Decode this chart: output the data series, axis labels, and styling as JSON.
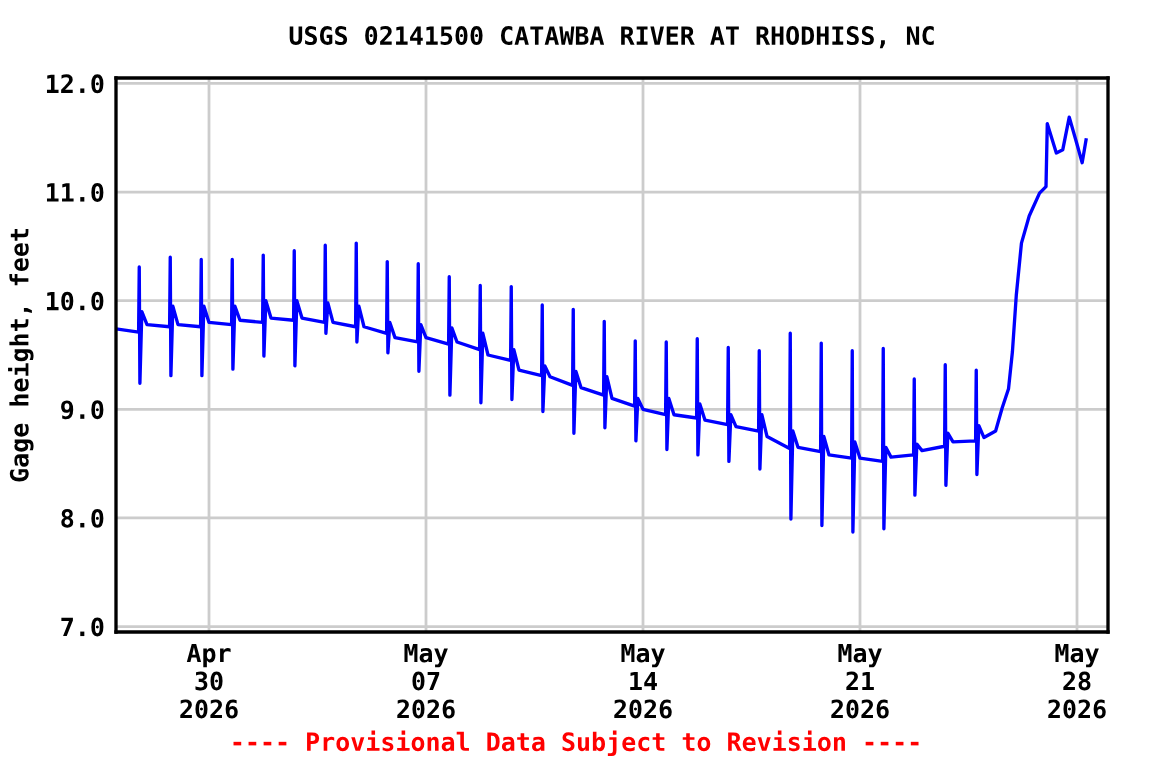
{
  "chart_data": {
    "type": "line",
    "title": "USGS 02141500 CATAWBA RIVER AT RHODHISS, NC",
    "ylabel": "Gage height, feet",
    "annotations": [
      "---- Provisional Data Subject to Revision ----"
    ],
    "xlim": [
      "2026-04-27T00:00",
      "2026-05-29T00:00"
    ],
    "xticks": [
      {
        "value": "2026-04-30",
        "label": "Apr\n30\n2026"
      },
      {
        "value": "2026-05-07",
        "label": "May\n07\n2026"
      },
      {
        "value": "2026-05-14",
        "label": "May\n14\n2026"
      },
      {
        "value": "2026-05-21",
        "label": "May\n21\n2026"
      },
      {
        "value": "2026-05-28",
        "label": "May\n28\n2026"
      }
    ],
    "ylim": [
      6.95,
      12.05
    ],
    "yticks": [
      {
        "value": 7,
        "label": "7.0"
      },
      {
        "value": 8,
        "label": "8.0"
      },
      {
        "value": 9,
        "label": "9.0"
      },
      {
        "value": 10,
        "label": "10.0"
      },
      {
        "value": 11,
        "label": "11.0"
      },
      {
        "value": 12,
        "label": "12.0"
      }
    ],
    "grid": true,
    "legend": false,
    "marker": "none",
    "line_style": "solid",
    "series": [
      {
        "color": "#0000ff",
        "x": [
          "2026-04-27T00:00",
          "2026-04-27T17:30",
          "2026-04-27T18:00",
          "2026-04-27T18:30",
          "2026-04-27T20:00",
          "2026-04-28T00:00",
          "2026-04-28T17:30",
          "2026-04-28T18:00",
          "2026-04-28T18:30",
          "2026-04-28T20:00",
          "2026-04-29T00:00",
          "2026-04-29T17:30",
          "2026-04-29T18:00",
          "2026-04-29T18:30",
          "2026-04-29T20:00",
          "2026-04-30T00:00",
          "2026-04-30T17:30",
          "2026-04-30T18:00",
          "2026-04-30T18:30",
          "2026-04-30T20:00",
          "2026-05-01T00:00",
          "2026-05-01T17:30",
          "2026-05-01T18:00",
          "2026-05-01T18:30",
          "2026-05-01T20:00",
          "2026-05-02T00:00",
          "2026-05-02T17:30",
          "2026-05-02T18:00",
          "2026-05-02T18:30",
          "2026-05-02T20:00",
          "2026-05-03T00:00",
          "2026-05-03T17:30",
          "2026-05-03T18:00",
          "2026-05-03T18:30",
          "2026-05-03T20:00",
          "2026-05-04T00:00",
          "2026-05-04T17:30",
          "2026-05-04T18:00",
          "2026-05-04T18:30",
          "2026-05-04T20:00",
          "2026-05-05T00:00",
          "2026-05-05T17:30",
          "2026-05-05T18:00",
          "2026-05-05T18:30",
          "2026-05-05T20:00",
          "2026-05-06T00:00",
          "2026-05-06T17:30",
          "2026-05-06T18:00",
          "2026-05-06T18:30",
          "2026-05-06T20:00",
          "2026-05-07T00:00",
          "2026-05-07T17:30",
          "2026-05-07T18:00",
          "2026-05-07T18:30",
          "2026-05-07T20:00",
          "2026-05-08T00:00",
          "2026-05-08T17:30",
          "2026-05-08T18:00",
          "2026-05-08T18:30",
          "2026-05-08T20:00",
          "2026-05-09T00:00",
          "2026-05-09T17:30",
          "2026-05-09T18:00",
          "2026-05-09T18:30",
          "2026-05-09T20:00",
          "2026-05-10T00:00",
          "2026-05-10T17:30",
          "2026-05-10T18:00",
          "2026-05-10T18:30",
          "2026-05-10T20:00",
          "2026-05-11T00:00",
          "2026-05-11T17:30",
          "2026-05-11T18:00",
          "2026-05-11T18:30",
          "2026-05-11T20:00",
          "2026-05-12T00:00",
          "2026-05-12T17:30",
          "2026-05-12T18:00",
          "2026-05-12T18:30",
          "2026-05-12T20:00",
          "2026-05-13T00:00",
          "2026-05-13T17:30",
          "2026-05-13T18:00",
          "2026-05-13T18:30",
          "2026-05-13T20:00",
          "2026-05-14T00:00",
          "2026-05-14T17:30",
          "2026-05-14T18:00",
          "2026-05-14T18:30",
          "2026-05-14T20:00",
          "2026-05-15T00:00",
          "2026-05-15T17:30",
          "2026-05-15T18:00",
          "2026-05-15T18:30",
          "2026-05-15T20:00",
          "2026-05-16T00:00",
          "2026-05-16T17:30",
          "2026-05-16T18:00",
          "2026-05-16T18:30",
          "2026-05-16T20:00",
          "2026-05-17T00:00",
          "2026-05-17T17:30",
          "2026-05-17T18:00",
          "2026-05-17T18:30",
          "2026-05-17T20:00",
          "2026-05-18T00:00",
          "2026-05-18T17:30",
          "2026-05-18T18:00",
          "2026-05-18T18:30",
          "2026-05-18T20:00",
          "2026-05-19T00:00",
          "2026-05-19T17:30",
          "2026-05-19T18:00",
          "2026-05-19T18:30",
          "2026-05-19T20:00",
          "2026-05-20T00:00",
          "2026-05-20T17:30",
          "2026-05-20T18:00",
          "2026-05-20T18:30",
          "2026-05-20T20:00",
          "2026-05-21T00:00",
          "2026-05-21T17:30",
          "2026-05-21T18:00",
          "2026-05-21T18:30",
          "2026-05-21T20:00",
          "2026-05-22T00:00",
          "2026-05-22T17:30",
          "2026-05-22T18:00",
          "2026-05-22T18:30",
          "2026-05-22T20:00",
          "2026-05-23T00:00",
          "2026-05-23T17:30",
          "2026-05-23T18:00",
          "2026-05-23T18:30",
          "2026-05-23T20:00",
          "2026-05-24T00:00",
          "2026-05-24T17:30",
          "2026-05-24T18:00",
          "2026-05-24T18:30",
          "2026-05-24T20:00",
          "2026-05-25T00:00",
          "2026-05-25T09:00",
          "2026-05-25T14:00",
          "2026-05-25T19:00",
          "2026-05-25T22:00",
          "2026-05-26T01:00",
          "2026-05-26T05:00",
          "2026-05-26T11:00",
          "2026-05-26T19:00",
          "2026-05-27T00:00",
          "2026-05-27T01:00",
          "2026-05-27T08:00",
          "2026-05-27T13:00",
          "2026-05-27T18:00",
          "2026-05-28T00:00",
          "2026-05-28T04:00",
          "2026-05-28T07:00"
        ],
        "values": [
          9.74,
          9.71,
          10.31,
          9.24,
          9.9,
          9.78,
          9.76,
          10.4,
          9.31,
          9.95,
          9.78,
          9.76,
          10.38,
          9.31,
          9.95,
          9.8,
          9.78,
          10.38,
          9.37,
          9.95,
          9.82,
          9.8,
          10.42,
          9.49,
          10.0,
          9.84,
          9.82,
          10.46,
          9.4,
          10.0,
          9.84,
          9.8,
          10.51,
          9.7,
          9.98,
          9.8,
          9.76,
          10.53,
          9.62,
          9.95,
          9.76,
          9.7,
          10.36,
          9.52,
          9.8,
          9.66,
          9.62,
          10.34,
          9.35,
          9.78,
          9.66,
          9.6,
          10.22,
          9.13,
          9.75,
          9.62,
          9.55,
          10.14,
          9.06,
          9.7,
          9.5,
          9.45,
          10.13,
          9.09,
          9.55,
          9.36,
          9.31,
          9.96,
          8.98,
          9.4,
          9.3,
          9.22,
          9.92,
          8.78,
          9.35,
          9.2,
          9.13,
          9.81,
          8.83,
          9.3,
          9.1,
          9.03,
          9.63,
          8.71,
          9.1,
          9.0,
          8.95,
          9.62,
          8.63,
          9.1,
          8.95,
          8.92,
          9.65,
          8.58,
          9.05,
          8.9,
          8.86,
          9.57,
          8.52,
          8.95,
          8.84,
          8.8,
          9.54,
          8.45,
          8.95,
          8.75,
          8.64,
          9.7,
          7.99,
          8.8,
          8.65,
          8.61,
          9.61,
          7.93,
          8.75,
          8.58,
          8.55,
          9.54,
          7.87,
          8.7,
          8.55,
          8.52,
          9.56,
          7.9,
          8.65,
          8.56,
          8.58,
          9.28,
          8.21,
          8.68,
          8.62,
          8.66,
          9.41,
          8.3,
          8.78,
          8.7,
          8.71,
          9.36,
          8.4,
          8.85,
          8.74,
          8.8,
          9.01,
          9.19,
          9.53,
          10.05,
          10.53,
          10.78,
          10.99,
          11.05,
          11.63,
          11.36,
          11.39,
          11.69,
          11.44,
          11.27,
          11.48
        ]
      }
    ]
  }
}
